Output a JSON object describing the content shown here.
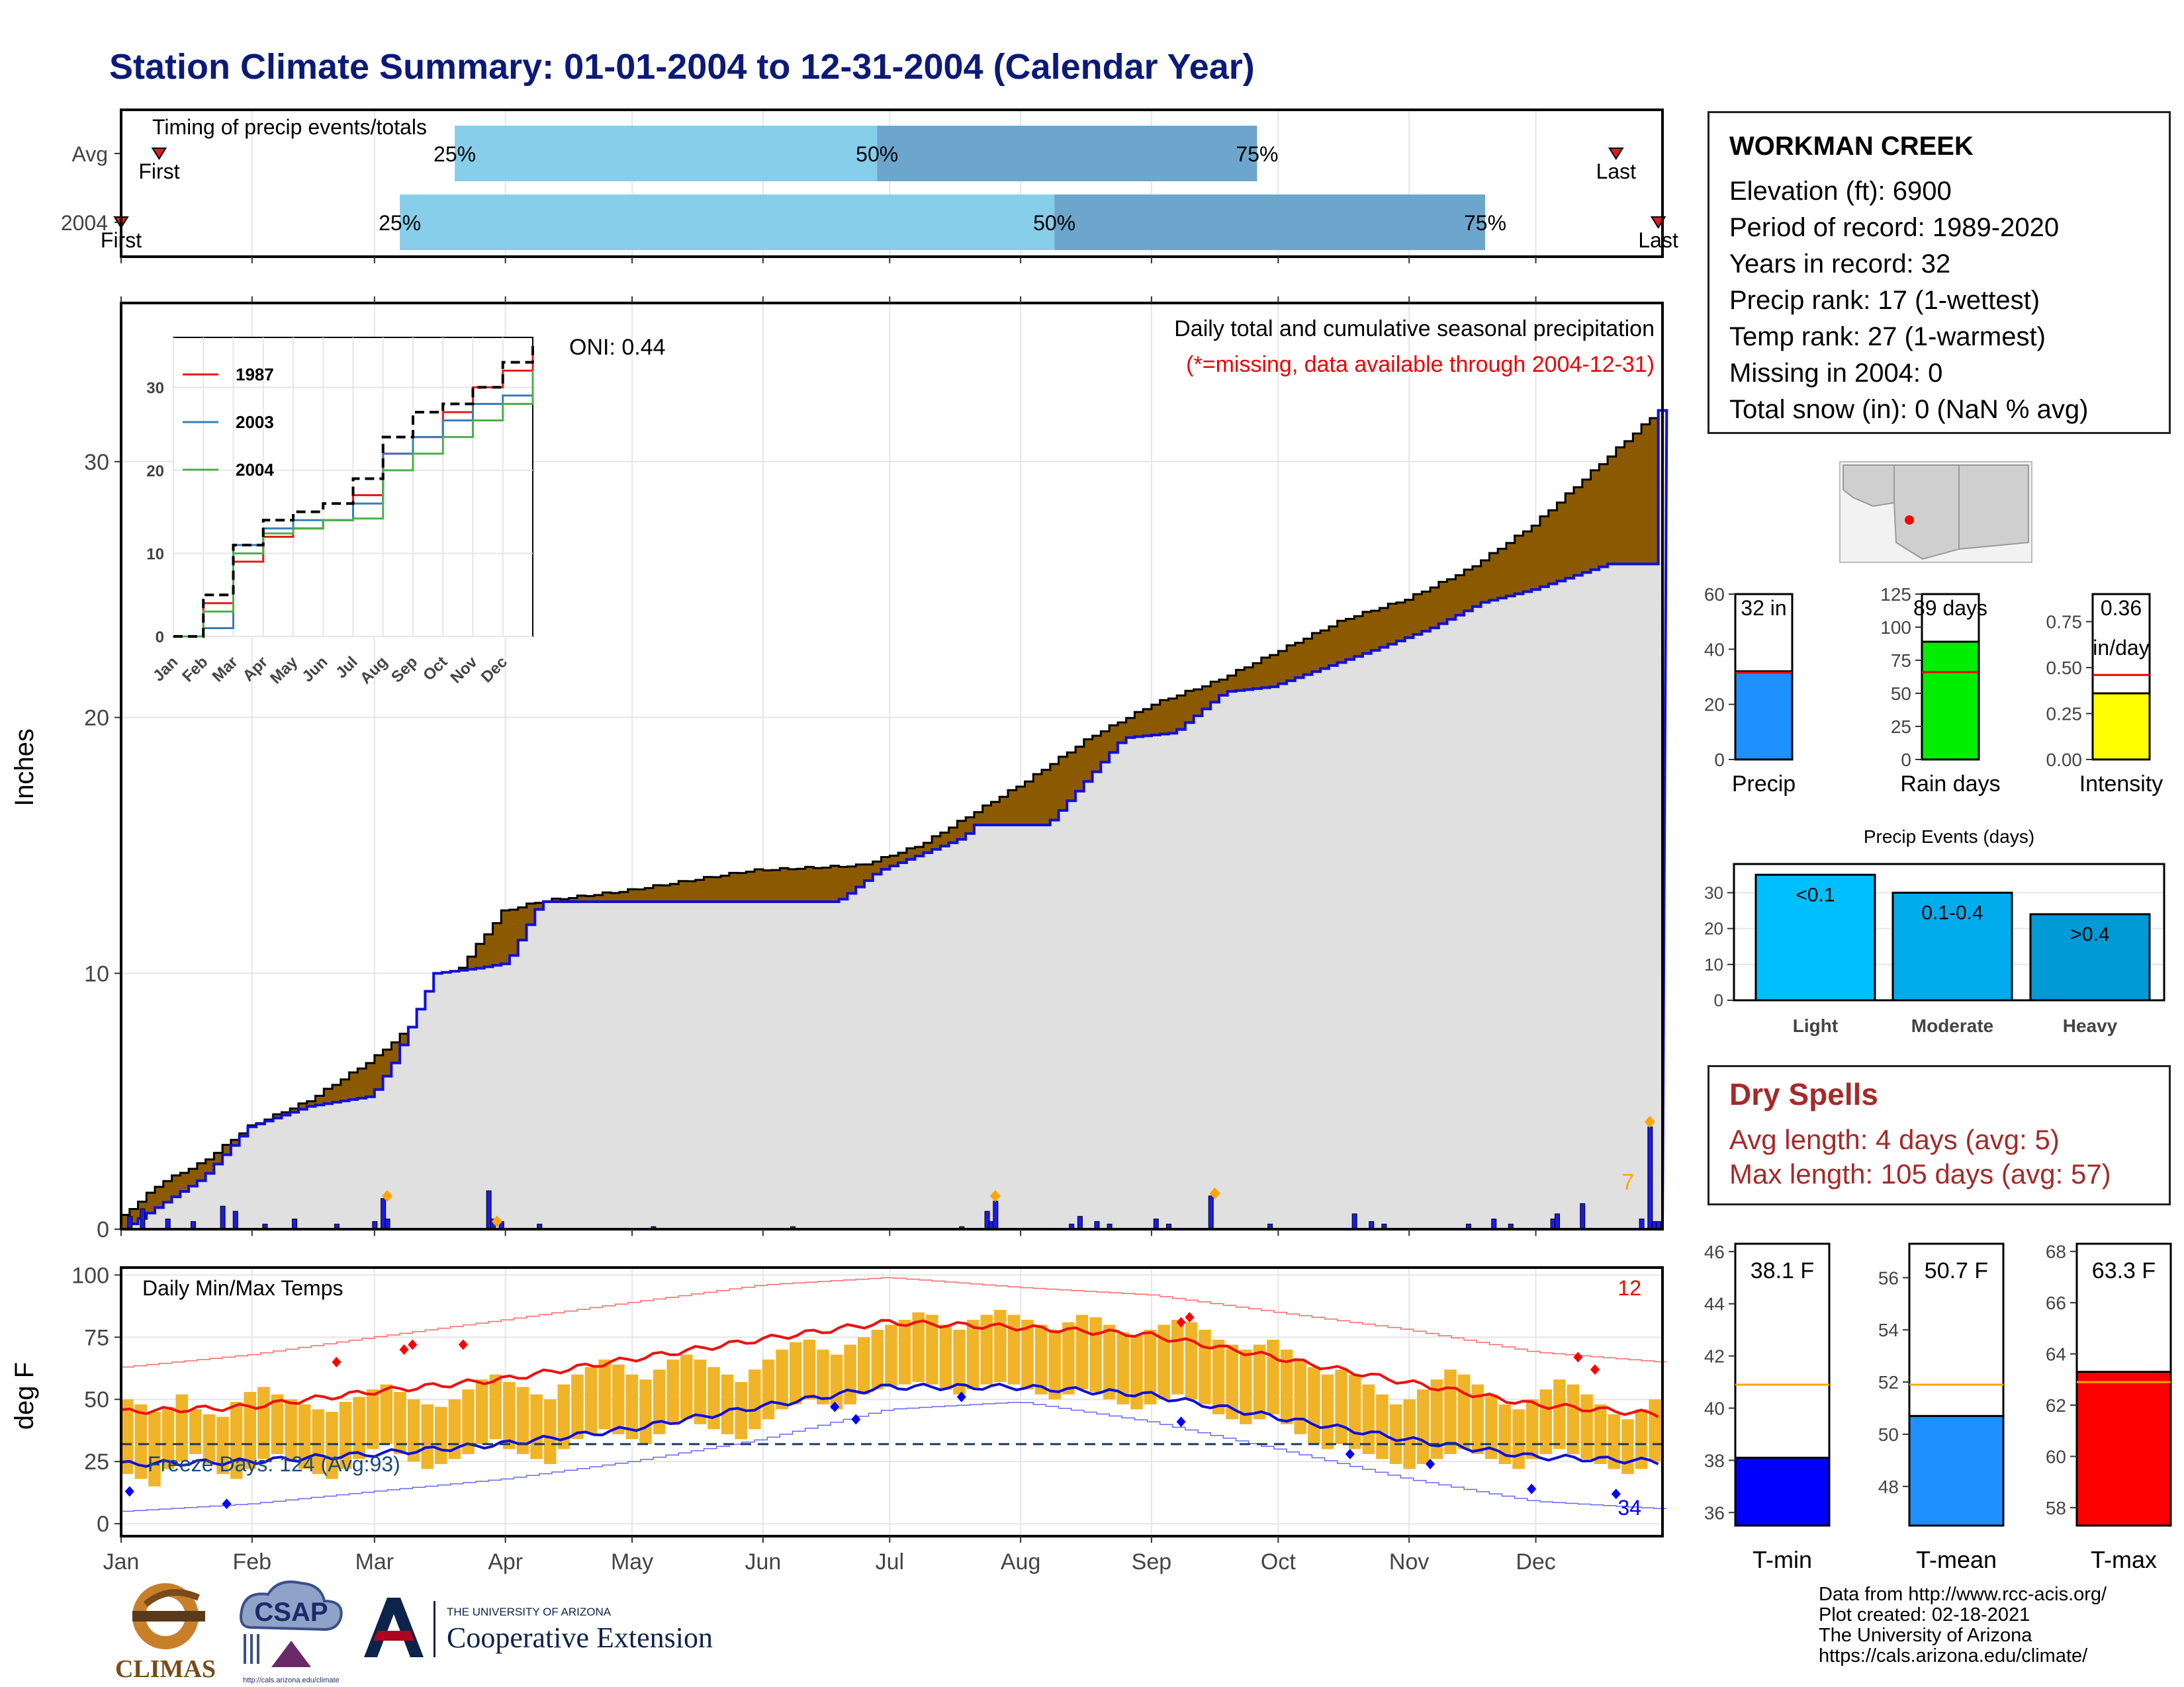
{
  "title": "Station Climate Summary: 01-01-2004 to 12-31-2004 (Calendar Year)",
  "colors": {
    "navy_title": "#0b1a7a",
    "cumulative_fill": "#8b5a00",
    "avg_fill": "#e0e0e0",
    "line_blue": "#1010d8",
    "bar_orange": "#f0b429",
    "tmax_red": "#ee1111",
    "timing_light": "#87ceeb",
    "timing_dark": "#6ca6cd",
    "rain_green": "#00ee00",
    "intensity_yellow": "#ffff00",
    "precip_blue": "#1e90ff"
  },
  "timing": {
    "label": "Timing of precip events/totals",
    "rows": [
      {
        "name": "Avg",
        "first_label": "First",
        "last_label": "Last",
        "first_doy": 10,
        "last_doy": 355,
        "p25_doy": 80,
        "p50_doy": 180,
        "p75_doy": 270
      },
      {
        "name": "2004",
        "first_label": "First",
        "last_label": "Last",
        "first_doy": 1,
        "last_doy": 365,
        "p25_doy": 67,
        "p50_doy": 222,
        "p75_doy": 324
      }
    ],
    "pct_labels": [
      "25%",
      "50%",
      "75%"
    ]
  },
  "month_labels": [
    "Jan",
    "Feb",
    "Mar",
    "Apr",
    "May",
    "Jun",
    "Jul",
    "Aug",
    "Sep",
    "Oct",
    "Nov",
    "Dec"
  ],
  "precip_panel": {
    "ylabel": "Inches",
    "yticks": [
      0,
      10,
      20,
      30
    ],
    "ylim": [
      0,
      36.2
    ],
    "oni": "ONI: 0.44",
    "heading": "Daily total and cumulative seasonal precipitation",
    "missing_note": "(*=missing, data available through 2004-12-31)",
    "corner_value": "7"
  },
  "inset": {
    "yticks": [
      0,
      10,
      20,
      30
    ],
    "xticks": [
      "Jan",
      "Feb",
      "Mar",
      "Apr",
      "May",
      "Jun",
      "Jul",
      "Aug",
      "Sep",
      "Oct",
      "Nov",
      "Dec"
    ],
    "legend": [
      {
        "name": "1987",
        "color": "#e41a1c"
      },
      {
        "name": "2003",
        "color": "#377eb8"
      },
      {
        "name": "2004",
        "color": "#4daf4a"
      }
    ]
  },
  "temp_panel": {
    "ylabel": "deg F",
    "title": "Daily Min/Max Temps",
    "yticks": [
      0,
      25,
      50,
      75,
      100
    ],
    "ylim": [
      -5,
      103
    ],
    "freeze_label": "Freeze Days: 124 (Avg:93)",
    "freeze_line": 32,
    "max_count": "12",
    "min_count": "34"
  },
  "station": {
    "name": "WORKMAN CREEK",
    "lines": [
      "Elevation (ft): 6900",
      "Period of record: 1989-2020",
      "Years in record: 32",
      "Precip rank: 17 (1-wettest)",
      "Temp rank: 27 (1-warmest)",
      "Missing in 2004: 0",
      "Total snow (in): 0 (NaN % avg)"
    ]
  },
  "mini_bars": [
    {
      "name": "Precip",
      "value": 32,
      "avg": 31.5,
      "label": "32 in",
      "yticks": [
        "0",
        "20",
        "40",
        "60"
      ],
      "ymax": 60,
      "color": "#1e90ff"
    },
    {
      "name": "Rain days",
      "value": 89,
      "avg": 66,
      "label": "89 days",
      "yticks": [
        "0",
        "25",
        "50",
        "75",
        "100",
        "125"
      ],
      "ymax": 125,
      "color": "#00ee00"
    },
    {
      "name": "Intensity",
      "value": 0.36,
      "avg": 0.46,
      "label": "0.36",
      "label2": "in/day",
      "yticks": [
        "0.00",
        "0.25",
        "0.50",
        "0.75"
      ],
      "ymax": 0.9,
      "color": "#ffff00"
    }
  ],
  "events": {
    "title": "Precip Events (days)",
    "categories": [
      "Light",
      "Moderate",
      "Heavy"
    ],
    "labels": [
      "<0.1",
      "0.1-0.4",
      ">0.4"
    ],
    "values": [
      35,
      30,
      24
    ],
    "yticks": [
      0,
      10,
      20,
      30
    ],
    "colors": [
      "#00bfff",
      "#00acec",
      "#009ad6"
    ]
  },
  "dry_spells": {
    "title": "Dry Spells",
    "lines": [
      "Avg length: 4 days (avg: 5)",
      "Max length: 105 days (avg: 57)"
    ]
  },
  "temp_bars": [
    {
      "name": "T-min",
      "value": 38.1,
      "avg": 40.9,
      "label": "38.1 F",
      "yticks": [
        36,
        38,
        40,
        42,
        44,
        46
      ],
      "ylim": [
        35.5,
        46.3
      ],
      "color": "#0000ff"
    },
    {
      "name": "T-mean",
      "value": 50.7,
      "avg": 51.9,
      "label": "50.7 F",
      "yticks": [
        48,
        50,
        52,
        54,
        56
      ],
      "ylim": [
        46.5,
        57.3
      ],
      "color": "#1e90ff"
    },
    {
      "name": "T-max",
      "value": 63.3,
      "avg": 62.9,
      "label": "63.3 F",
      "yticks": [
        58,
        60,
        62,
        64,
        66,
        68
      ],
      "ylim": [
        57.3,
        68.3
      ],
      "color": "#ff0000"
    }
  ],
  "credits": [
    "Data from http://www.rcc-acis.org/",
    "Plot created: 02-18-2021",
    "The University of Arizona",
    "https://cals.arizona.edu/climate/"
  ],
  "logos": {
    "climas": "CLIMAS",
    "csap": "CSAP",
    "csap_url": "http://cals.arizona.edu/climate",
    "ua_small": "THE UNIVERSITY OF ARIZONA",
    "ua_big": "Cooperative Extension"
  },
  "chart_data": [
    {
      "type": "area",
      "title": "Daily total and cumulative seasonal precipitation",
      "ylabel": "Inches",
      "ylim": [
        0,
        36.2
      ],
      "x_unit": "day of year 2004",
      "series": [
        {
          "name": "2004",
          "x": [
            1,
            10,
            20,
            31,
            45,
            60,
            70,
            80,
            91,
            100,
            120,
            150,
            176,
            190,
            200,
            215,
            230,
            245,
            260,
            275,
            290,
            305,
            320,
            335,
            345,
            355,
            365
          ],
          "values": [
            0.5,
            1.8,
            2.6,
            4.0,
            5.0,
            6.6,
            8.0,
            10.0,
            12.4,
            12.8,
            13.2,
            14.0,
            14.2,
            15.0,
            16.0,
            17.5,
            19.2,
            20.5,
            21.4,
            22.6,
            23.8,
            24.6,
            25.8,
            27.5,
            29.0,
            30.5,
            32.0
          ]
        }
      ],
      "avg_x": [
        1,
        20,
        31,
        45,
        60,
        65,
        75,
        85,
        92,
        100,
        170,
        172,
        180,
        200,
        203,
        220,
        238,
        250,
        262,
        273,
        300,
        311,
        323,
        335,
        353,
        364,
        365
      ],
      "avg_values": [
        0.0,
        2.0,
        4.0,
        4.8,
        5.2,
        6.5,
        10.0,
        10.2,
        10.4,
        12.8,
        12.8,
        13.0,
        14.0,
        15.3,
        15.8,
        15.8,
        19.2,
        19.4,
        21.0,
        21.2,
        22.8,
        23.5,
        24.5,
        25.0,
        26.0,
        26.0,
        32.0
      ],
      "daily_bars": [
        [
          3,
          0.5
        ],
        [
          6,
          0.8
        ],
        [
          12,
          0.4
        ],
        [
          18,
          0.3
        ],
        [
          25,
          0.9
        ],
        [
          28,
          0.7
        ],
        [
          35,
          0.2
        ],
        [
          42,
          0.4
        ],
        [
          52,
          0.2
        ],
        [
          61,
          0.3
        ],
        [
          63,
          1.2
        ],
        [
          64,
          0.4
        ],
        [
          88,
          1.5
        ],
        [
          89,
          0.4
        ],
        [
          91,
          0.3
        ],
        [
          100,
          0.2
        ],
        [
          127,
          0.1
        ],
        [
          160,
          0.1
        ],
        [
          200,
          0.1
        ],
        [
          206,
          0.7
        ],
        [
          207,
          0.3
        ],
        [
          208,
          1.1
        ],
        [
          226,
          0.2
        ],
        [
          228,
          0.5
        ],
        [
          232,
          0.3
        ],
        [
          235,
          0.2
        ],
        [
          246,
          0.4
        ],
        [
          249,
          0.2
        ],
        [
          259,
          1.3
        ],
        [
          273,
          0.2
        ],
        [
          293,
          0.6
        ],
        [
          297,
          0.3
        ],
        [
          300,
          0.2
        ],
        [
          320,
          0.2
        ],
        [
          326,
          0.4
        ],
        [
          330,
          0.2
        ],
        [
          340,
          0.4
        ],
        [
          341,
          0.6
        ],
        [
          347,
          1.0
        ],
        [
          361,
          0.4
        ],
        [
          363,
          4.0
        ],
        [
          364,
          0.3
        ],
        [
          365,
          0.3
        ]
      ],
      "record_marks": [
        [
          64,
          1.3
        ],
        [
          90,
          0.3
        ],
        [
          208,
          1.3
        ],
        [
          260,
          1.4
        ],
        [
          363,
          4.2
        ]
      ]
    },
    {
      "type": "line",
      "title": "Daily Min/Max Temps",
      "ylabel": "deg F",
      "ylim": [
        -5,
        103
      ],
      "x_unit": "day of year 2004",
      "series": [
        {
          "name": "avg max",
          "x": [
            1,
            31,
            60,
            91,
            121,
            152,
            182,
            213,
            244,
            274,
            305,
            335,
            365
          ],
          "values": [
            45,
            47,
            53,
            58,
            66,
            74,
            81,
            79,
            76,
            67,
            57,
            48,
            44
          ]
        },
        {
          "name": "avg min",
          "x": [
            1,
            31,
            60,
            91,
            121,
            152,
            182,
            213,
            244,
            274,
            305,
            335,
            365
          ],
          "values": [
            24,
            25,
            28,
            32,
            38,
            47,
            55,
            55,
            52,
            43,
            34,
            27,
            25
          ]
        },
        {
          "name": "record max",
          "x": [
            1,
            31,
            60,
            91,
            121,
            152,
            182,
            213,
            244,
            274,
            305,
            335,
            365
          ],
          "values": [
            60,
            65,
            72,
            79,
            86,
            93,
            96,
            92,
            89,
            82,
            75,
            66,
            62
          ]
        },
        {
          "name": "record min",
          "x": [
            1,
            31,
            60,
            91,
            121,
            152,
            182,
            213,
            244,
            274,
            305,
            335,
            365
          ],
          "values": [
            2,
            5,
            10,
            15,
            22,
            31,
            43,
            46,
            38,
            27,
            15,
            6,
            3
          ]
        }
      ],
      "bars_daily_max": [
        50,
        48,
        45,
        47,
        52,
        46,
        44,
        43,
        49,
        53,
        55,
        52,
        50,
        48,
        46,
        45,
        49,
        51,
        54,
        56,
        53,
        50,
        48,
        47,
        50,
        54,
        58,
        60,
        57,
        55,
        52,
        50,
        56,
        60,
        63,
        66,
        64,
        60,
        58,
        62,
        66,
        68,
        66,
        63,
        60,
        57,
        62,
        66,
        70,
        73,
        74,
        70,
        68,
        72,
        75,
        78,
        80,
        82,
        85,
        84,
        80,
        78,
        82,
        84,
        86,
        84,
        82,
        80,
        78,
        81,
        84,
        83,
        80,
        77,
        76,
        78,
        80,
        82,
        81,
        78,
        74,
        72,
        70,
        72,
        74,
        70,
        66,
        63,
        60,
        62,
        60,
        56,
        52,
        48,
        50,
        54,
        58,
        62,
        60,
        56,
        52,
        48,
        46,
        50,
        54,
        58,
        56,
        52,
        48,
        44,
        42,
        46,
        50
      ],
      "bars_daily_min": [
        20,
        18,
        15,
        22,
        25,
        28,
        24,
        20,
        18,
        22,
        26,
        28,
        25,
        22,
        20,
        18,
        22,
        26,
        30,
        32,
        28,
        25,
        22,
        24,
        26,
        28,
        32,
        34,
        30,
        28,
        26,
        24,
        30,
        34,
        36,
        38,
        36,
        34,
        32,
        36,
        40,
        42,
        40,
        38,
        36,
        34,
        38,
        42,
        46,
        48,
        50,
        48,
        46,
        48,
        52,
        54,
        55,
        56,
        57,
        56,
        54,
        52,
        54,
        56,
        57,
        56,
        54,
        52,
        50,
        52,
        54,
        53,
        50,
        48,
        46,
        48,
        50,
        52,
        50,
        48,
        44,
        42,
        40,
        42,
        44,
        40,
        36,
        32,
        30,
        32,
        30,
        28,
        26,
        24,
        22,
        24,
        26,
        28,
        30,
        28,
        26,
        24,
        22,
        26,
        28,
        30,
        28,
        26,
        24,
        22,
        20,
        22,
        25
      ],
      "record_high_marks": [
        [
          52,
          65
        ],
        [
          68,
          70
        ],
        [
          70,
          72
        ],
        [
          82,
          72
        ],
        [
          252,
          81
        ],
        [
          254,
          83
        ],
        [
          346,
          67
        ],
        [
          350,
          62
        ]
      ],
      "record_low_marks": [
        [
          3,
          13
        ],
        [
          26,
          8
        ],
        [
          170,
          47
        ],
        [
          175,
          42
        ],
        [
          200,
          51
        ],
        [
          252,
          41
        ],
        [
          292,
          28
        ],
        [
          311,
          24
        ],
        [
          335,
          14
        ],
        [
          355,
          12
        ]
      ]
    },
    {
      "type": "line",
      "title": "",
      "x_unit": "month",
      "ylim": [
        0,
        36
      ],
      "series": [
        {
          "name": "1987",
          "x": [
            0,
            1,
            2,
            3,
            4,
            5,
            6,
            7,
            8,
            9,
            10,
            11,
            12
          ],
          "values": [
            0,
            4,
            9,
            12,
            13,
            14,
            17,
            22,
            24,
            27,
            30,
            32,
            35
          ]
        },
        {
          "name": "2003",
          "x": [
            0,
            1,
            2,
            3,
            4,
            5,
            6,
            7,
            8,
            9,
            10,
            11,
            12
          ],
          "values": [
            0,
            1,
            11,
            13,
            14,
            14,
            16,
            22,
            24,
            26,
            28,
            29,
            32
          ]
        },
        {
          "name": "2004",
          "x": [
            0,
            1,
            2,
            3,
            4,
            5,
            6,
            7,
            8,
            9,
            10,
            11,
            12
          ],
          "values": [
            0,
            3,
            10,
            12.4,
            13,
            14,
            14.2,
            20,
            22,
            24,
            26,
            28,
            32
          ]
        },
        {
          "name": "avg",
          "x": [
            0,
            1,
            2,
            3,
            4,
            5,
            6,
            7,
            8,
            9,
            10,
            11,
            12
          ],
          "values": [
            0,
            5,
            11,
            14,
            15,
            16,
            19,
            24,
            27,
            28,
            30,
            33,
            35
          ]
        }
      ]
    },
    {
      "type": "bar",
      "title": "Precip Events (days)",
      "categories": [
        "Light",
        "Moderate",
        "Heavy"
      ],
      "values": [
        35,
        30,
        24
      ]
    }
  ]
}
